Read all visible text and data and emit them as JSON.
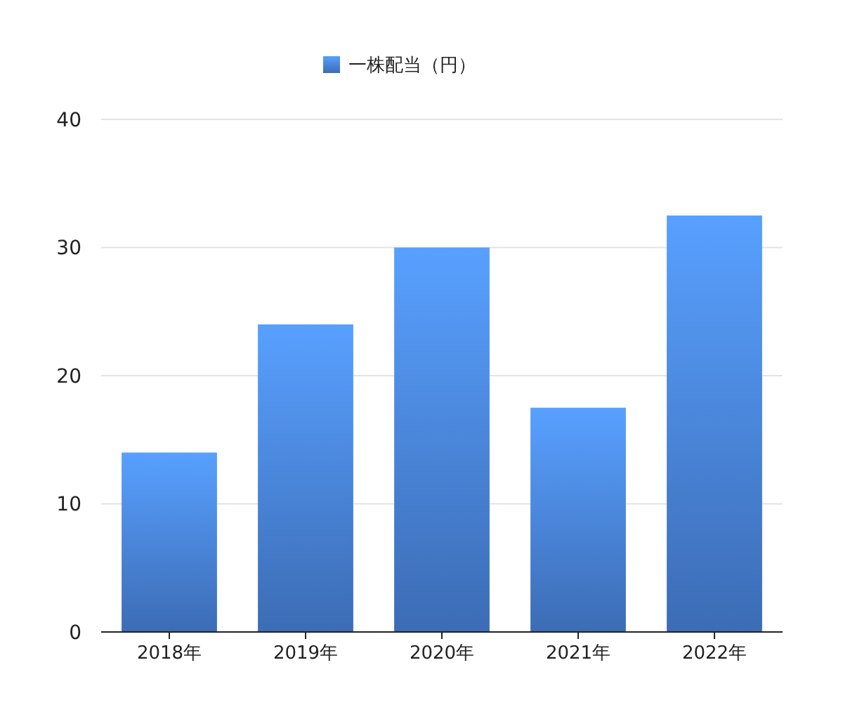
{
  "chart_data": {
    "type": "bar",
    "categories": [
      "2018年",
      "2019年",
      "2020年",
      "2021年",
      "2022年"
    ],
    "series": [
      {
        "name": "一株配当（円）",
        "color": "#4a86e0",
        "values": [
          14,
          24,
          30,
          17.5,
          32.5
        ]
      }
    ],
    "ylim": [
      0,
      40
    ],
    "yticks": [
      0,
      10,
      20,
      30,
      40
    ],
    "grid": "y",
    "legend": "top"
  }
}
